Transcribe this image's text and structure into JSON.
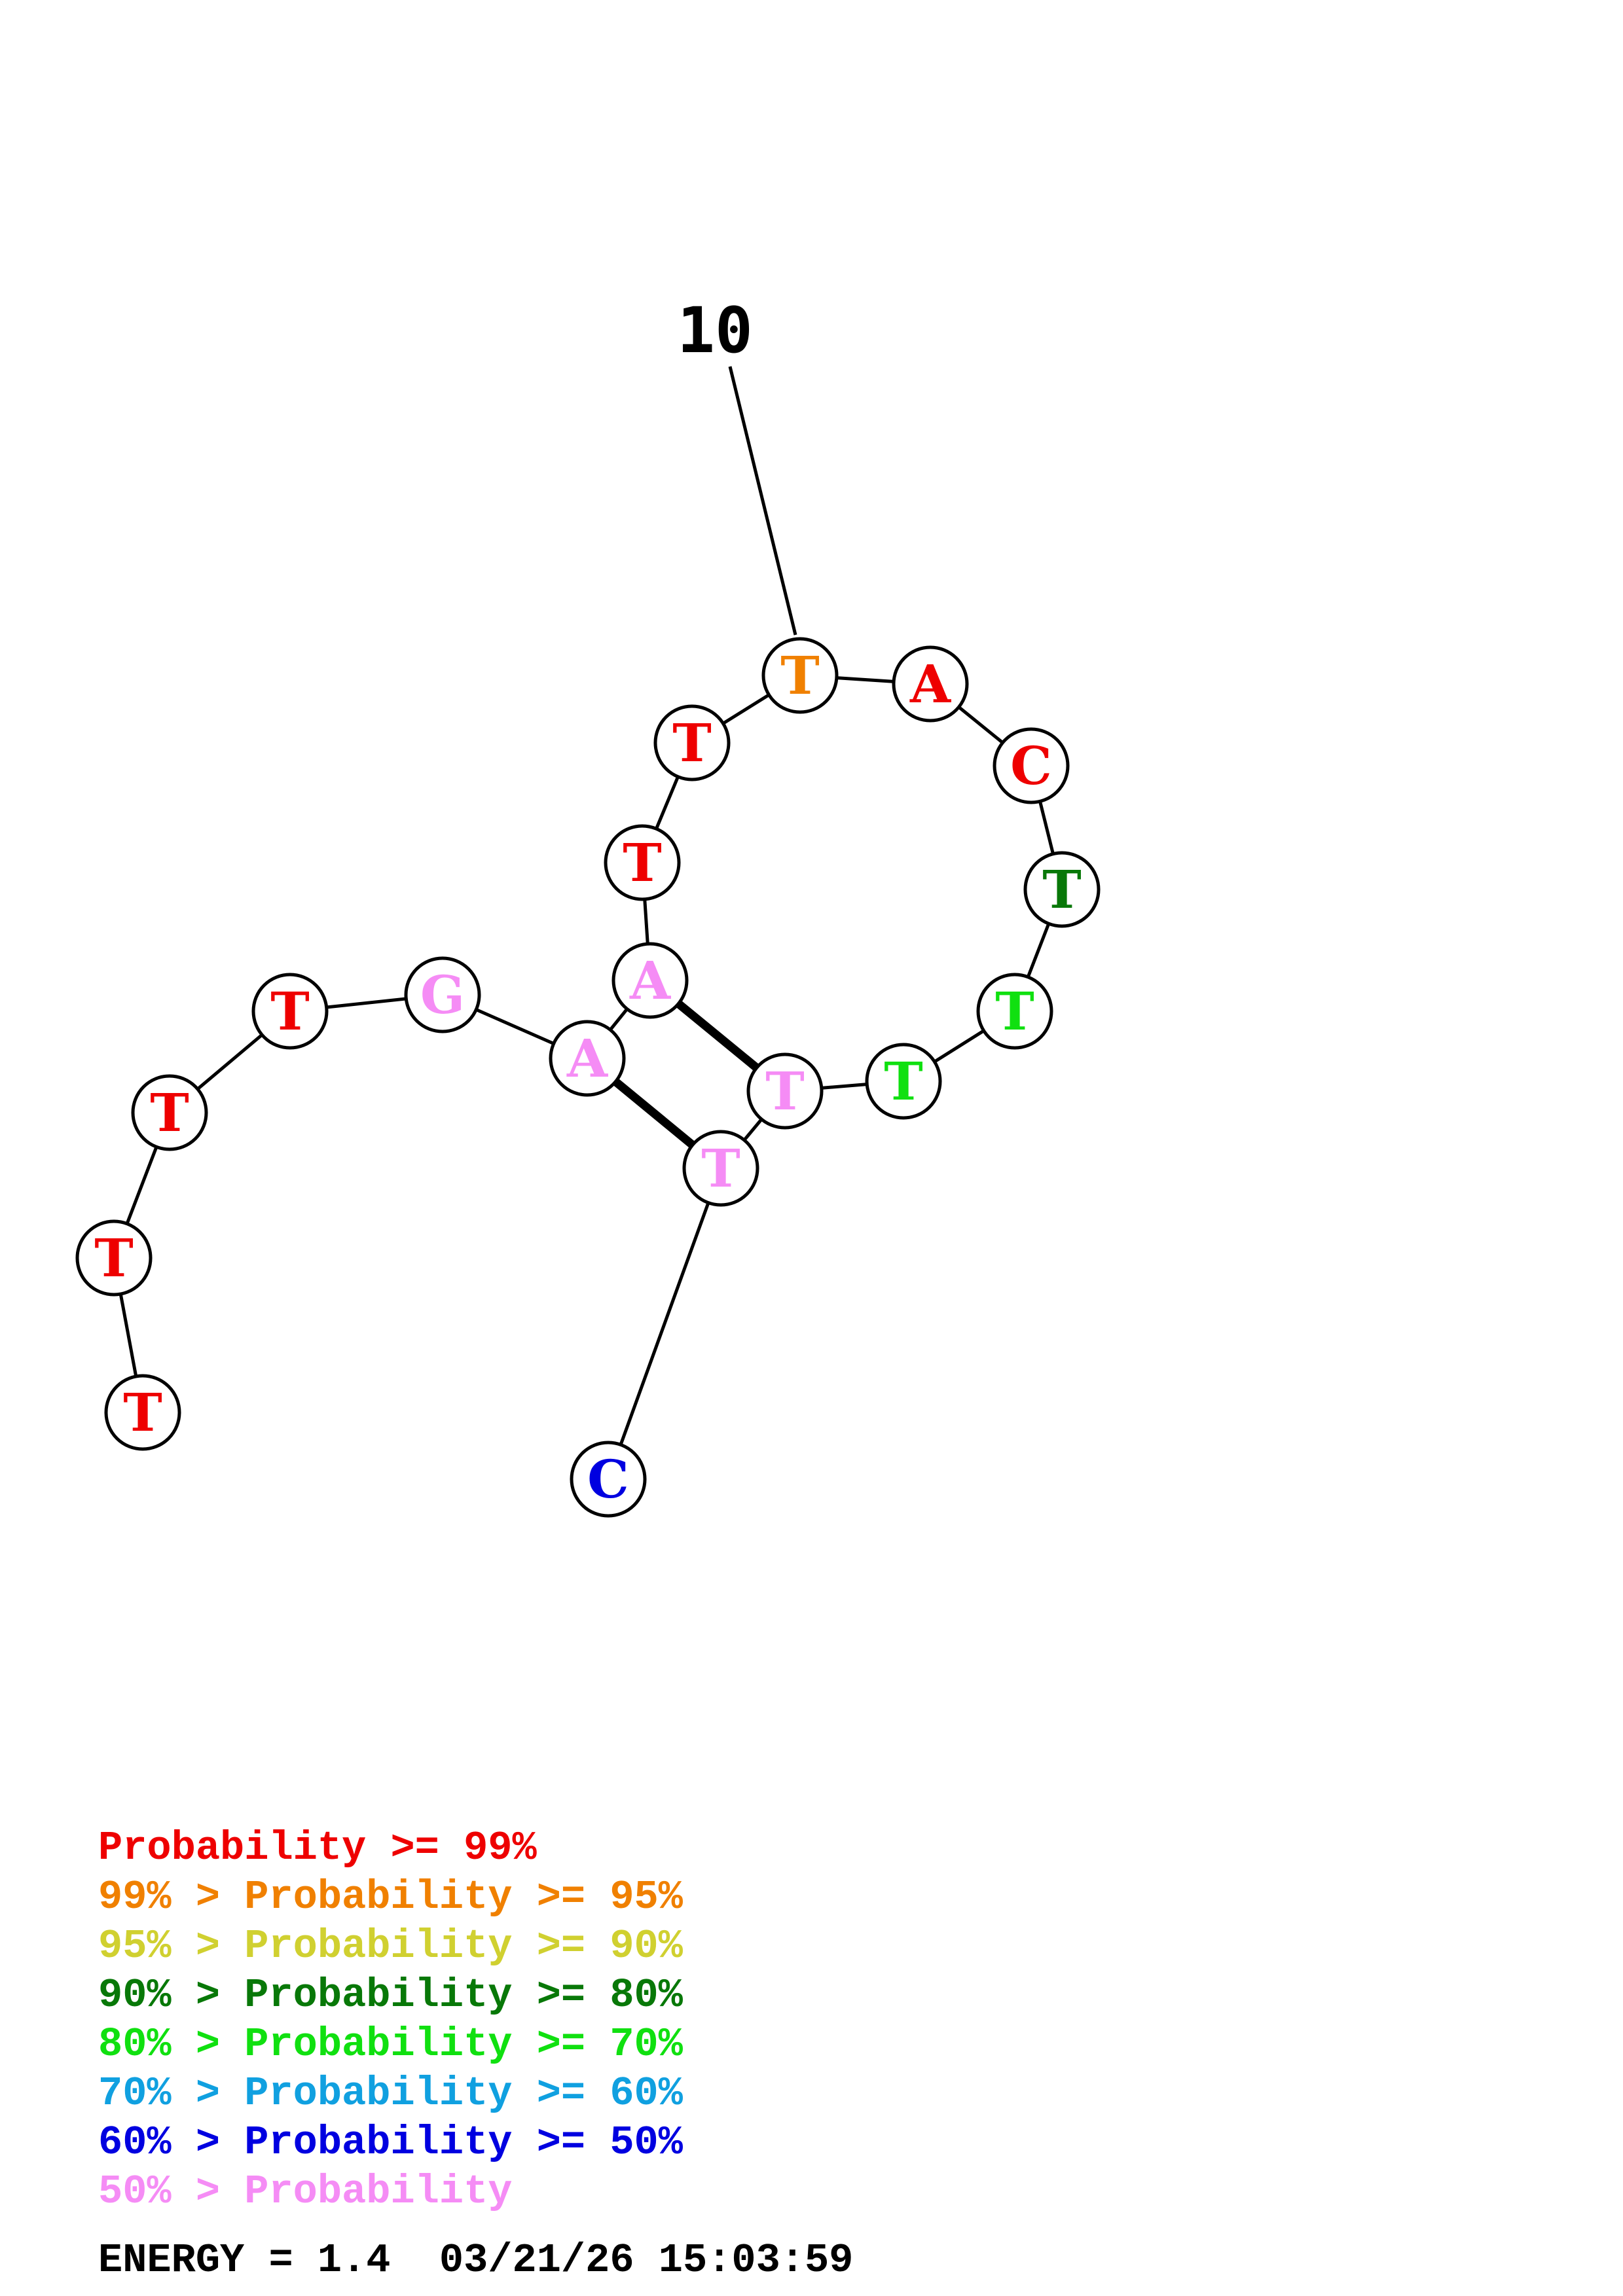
{
  "structure": {
    "tick_label": "10",
    "nucleotides": [
      {
        "letter": "T",
        "color": "#ee0000"
      },
      {
        "letter": "T",
        "color": "#ee0000"
      },
      {
        "letter": "T",
        "color": "#ee0000"
      },
      {
        "letter": "T",
        "color": "#ee0000"
      },
      {
        "letter": "G",
        "color": "#f58cf5"
      },
      {
        "letter": "A",
        "color": "#f58cf5"
      },
      {
        "letter": "A",
        "color": "#f58cf5"
      },
      {
        "letter": "T",
        "color": "#ee0000"
      },
      {
        "letter": "T",
        "color": "#ee0000"
      },
      {
        "letter": "T",
        "color": "#f08000"
      },
      {
        "letter": "A",
        "color": "#ee0000"
      },
      {
        "letter": "C",
        "color": "#ee0000"
      },
      {
        "letter": "T",
        "color": "#087808"
      },
      {
        "letter": "T",
        "color": "#10e010"
      },
      {
        "letter": "T",
        "color": "#10e010"
      },
      {
        "letter": "T",
        "color": "#f58cf5"
      },
      {
        "letter": "T",
        "color": "#f58cf5"
      },
      {
        "letter": "C",
        "color": "#0000e0"
      }
    ]
  },
  "legend": [
    {
      "text": "      Probability >= 99%",
      "color": "#ee0000"
    },
    {
      "text": "99% > Probability >= 95%",
      "color": "#f08000"
    },
    {
      "text": "95% > Probability >= 90%",
      "color": "#d0d030"
    },
    {
      "text": "90% > Probability >= 80%",
      "color": "#087808"
    },
    {
      "text": "80% > Probability >= 70%",
      "color": "#10e010"
    },
    {
      "text": "70% > Probability >= 60%",
      "color": "#10a0e0"
    },
    {
      "text": "60% > Probability >= 50%",
      "color": "#0000e0"
    },
    {
      "text": "50% > Probability",
      "color": "#f58cf5"
    }
  ],
  "energy_line": "ENERGY = 1.4  03/21/26 15:03:59"
}
